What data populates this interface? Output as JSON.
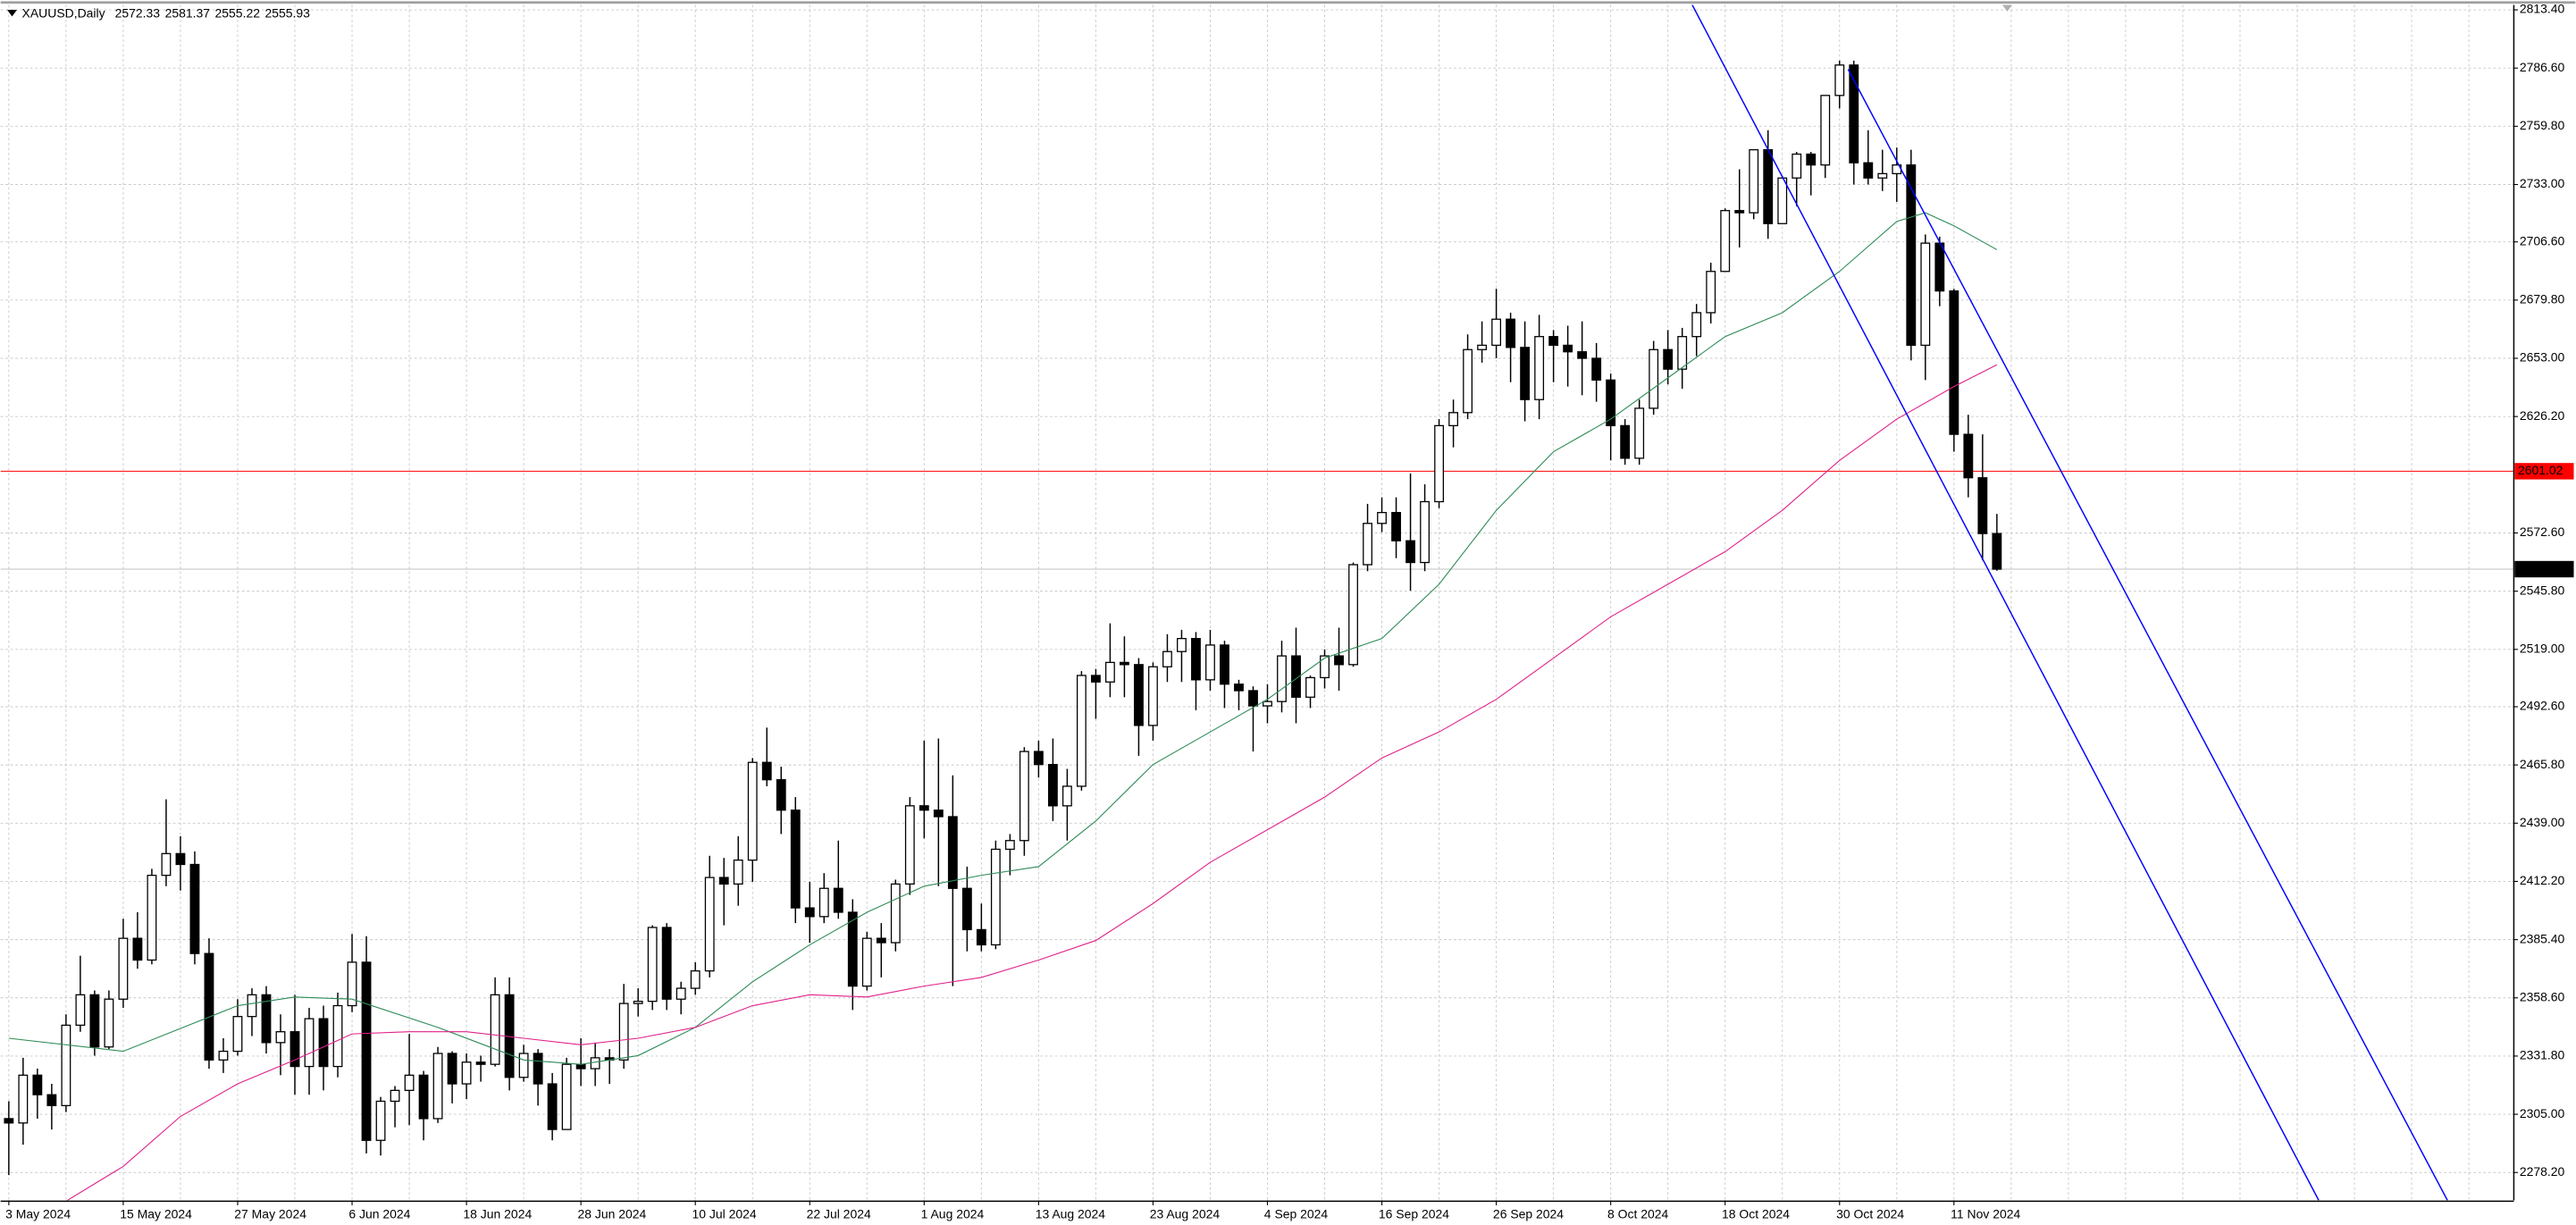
{
  "chart_data": {
    "type": "candlestick",
    "title": "XAUUSD,Daily",
    "bull_color": "#ffffff",
    "bear_color": "#000000",
    "grid": true,
    "categories": [
      "3 May 2024",
      null,
      null,
      null,
      null,
      null,
      null,
      null,
      "15 May 2024",
      null,
      null,
      null,
      null,
      null,
      null,
      null,
      "27 May 2024",
      null,
      null,
      null,
      null,
      null,
      null,
      null,
      "6 Jun 2024",
      null,
      null,
      null,
      null,
      null,
      null,
      null,
      "18 Jun 2024",
      null,
      null,
      null,
      null,
      null,
      null,
      null,
      "28 Jun 2024",
      null,
      null,
      null,
      null,
      null,
      null,
      null,
      "10 Jul 2024",
      null,
      null,
      null,
      null,
      null,
      null,
      null,
      "22 Jul 2024",
      null,
      null,
      null,
      null,
      null,
      null,
      null,
      "1 Aug 2024",
      null,
      null,
      null,
      null,
      null,
      null,
      null,
      "13 Aug 2024",
      null,
      null,
      null,
      null,
      null,
      null,
      null,
      "23 Aug 2024",
      null,
      null,
      null,
      null,
      null,
      null,
      null,
      "4 Sep 2024",
      null,
      null,
      null,
      null,
      null,
      null,
      null,
      "16 Sep 2024",
      null,
      null,
      null,
      null,
      null,
      null,
      null,
      "26 Sep 2024",
      null,
      null,
      null,
      null,
      null,
      null,
      null,
      "8 Oct 2024",
      null,
      null,
      null,
      null,
      null,
      null,
      null,
      "18 Oct 2024",
      null,
      null,
      null,
      null,
      null,
      null,
      null,
      "30 Oct 2024",
      null,
      null,
      null,
      null,
      null,
      null,
      null,
      "11 Nov 2024",
      null,
      null,
      null
    ],
    "ohlc": [
      [
        2303,
        2311,
        2277,
        2301
      ],
      [
        2301,
        2331,
        2291,
        2323
      ],
      [
        2323,
        2326,
        2303,
        2314
      ],
      [
        2314,
        2319,
        2298,
        2309
      ],
      [
        2309,
        2351,
        2306,
        2346
      ],
      [
        2346,
        2378,
        2343,
        2360
      ],
      [
        2360,
        2362,
        2332,
        2336
      ],
      [
        2336,
        2362,
        2335,
        2358
      ],
      [
        2358,
        2395,
        2354,
        2386
      ],
      [
        2386,
        2398,
        2372,
        2376
      ],
      [
        2376,
        2418,
        2374,
        2415
      ],
      [
        2415,
        2450,
        2410,
        2425
      ],
      [
        2425,
        2433,
        2408,
        2420
      ],
      [
        2420,
        2426,
        2374,
        2379
      ],
      [
        2379,
        2386,
        2326,
        2330
      ],
      [
        2330,
        2340,
        2324,
        2334
      ],
      [
        2334,
        2358,
        2332,
        2350
      ],
      [
        2350,
        2363,
        2341,
        2360
      ],
      [
        2360,
        2364,
        2333,
        2338
      ],
      [
        2338,
        2351,
        2323,
        2343
      ],
      [
        2343,
        2360,
        2314,
        2327
      ],
      [
        2327,
        2354,
        2314,
        2349
      ],
      [
        2349,
        2355,
        2316,
        2327
      ],
      [
        2327,
        2361,
        2322,
        2355
      ],
      [
        2355,
        2388,
        2352,
        2375
      ],
      [
        2375,
        2387,
        2287,
        2293
      ],
      [
        2293,
        2313,
        2286,
        2311
      ],
      [
        2311,
        2318,
        2299,
        2316
      ],
      [
        2316,
        2342,
        2300,
        2323
      ],
      [
        2323,
        2325,
        2293,
        2303
      ],
      [
        2303,
        2336,
        2301,
        2333
      ],
      [
        2333,
        2334,
        2310,
        2319
      ],
      [
        2319,
        2333,
        2312,
        2329
      ],
      [
        2329,
        2332,
        2320,
        2328
      ],
      [
        2328,
        2368,
        2327,
        2360
      ],
      [
        2360,
        2368,
        2316,
        2322
      ],
      [
        2322,
        2337,
        2320,
        2333
      ],
      [
        2333,
        2335,
        2309,
        2319
      ],
      [
        2319,
        2324,
        2293,
        2298
      ],
      [
        2298,
        2331,
        2298,
        2328
      ],
      [
        2328,
        2340,
        2318,
        2326
      ],
      [
        2326,
        2338,
        2318,
        2331
      ],
      [
        2331,
        2335,
        2319,
        2330
      ],
      [
        2330,
        2365,
        2326,
        2356
      ],
      [
        2356,
        2363,
        2350,
        2357
      ],
      [
        2357,
        2392,
        2353,
        2391
      ],
      [
        2391,
        2393,
        2353,
        2358
      ],
      [
        2358,
        2366,
        2351,
        2363
      ],
      [
        2363,
        2375,
        2360,
        2371
      ],
      [
        2371,
        2424,
        2368,
        2414
      ],
      [
        2414,
        2423,
        2392,
        2411
      ],
      [
        2411,
        2433,
        2401,
        2422
      ],
      [
        2422,
        2469,
        2412,
        2467
      ],
      [
        2467,
        2483,
        2456,
        2459
      ],
      [
        2459,
        2465,
        2434,
        2445
      ],
      [
        2445,
        2451,
        2393,
        2400
      ],
      [
        2400,
        2412,
        2384,
        2396
      ],
      [
        2396,
        2416,
        2393,
        2409
      ],
      [
        2409,
        2431,
        2395,
        2398
      ],
      [
        2398,
        2404,
        2353,
        2364
      ],
      [
        2364,
        2389,
        2362,
        2386
      ],
      [
        2386,
        2393,
        2368,
        2384
      ],
      [
        2384,
        2413,
        2380,
        2411
      ],
      [
        2411,
        2451,
        2406,
        2447
      ],
      [
        2447,
        2477,
        2432,
        2445
      ],
      [
        2445,
        2478,
        2410,
        2442
      ],
      [
        2442,
        2461,
        2364,
        2409
      ],
      [
        2409,
        2419,
        2380,
        2390
      ],
      [
        2390,
        2402,
        2380,
        2383
      ],
      [
        2383,
        2431,
        2381,
        2427
      ],
      [
        2427,
        2434,
        2415,
        2431
      ],
      [
        2431,
        2474,
        2424,
        2472
      ],
      [
        2472,
        2477,
        2460,
        2466
      ],
      [
        2466,
        2478,
        2440,
        2447
      ],
      [
        2447,
        2464,
        2431,
        2456
      ],
      [
        2456,
        2509,
        2454,
        2507
      ],
      [
        2507,
        2510,
        2487,
        2504
      ],
      [
        2504,
        2531,
        2497,
        2513
      ],
      [
        2513,
        2525,
        2497,
        2512
      ],
      [
        2512,
        2515,
        2470,
        2484
      ],
      [
        2484,
        2513,
        2477,
        2511
      ],
      [
        2511,
        2526,
        2504,
        2518
      ],
      [
        2518,
        2528,
        2504,
        2524
      ],
      [
        2524,
        2527,
        2491,
        2505
      ],
      [
        2505,
        2528,
        2500,
        2521
      ],
      [
        2521,
        2523,
        2492,
        2503
      ],
      [
        2503,
        2505,
        2491,
        2500
      ],
      [
        2500,
        2502,
        2472,
        2493
      ],
      [
        2493,
        2503,
        2485,
        2495
      ],
      [
        2495,
        2523,
        2490,
        2516
      ],
      [
        2516,
        2529,
        2485,
        2497
      ],
      [
        2497,
        2507,
        2492,
        2506
      ],
      [
        2506,
        2519,
        2501,
        2516
      ],
      [
        2516,
        2529,
        2500,
        2512
      ],
      [
        2512,
        2559,
        2511,
        2558
      ],
      [
        2558,
        2586,
        2555,
        2577
      ],
      [
        2577,
        2589,
        2573,
        2582
      ],
      [
        2582,
        2589,
        2561,
        2569
      ],
      [
        2569,
        2600,
        2546,
        2559
      ],
      [
        2559,
        2595,
        2555,
        2587
      ],
      [
        2587,
        2625,
        2584,
        2622
      ],
      [
        2622,
        2634,
        2612,
        2628
      ],
      [
        2628,
        2664,
        2625,
        2657
      ],
      [
        2657,
        2670,
        2651,
        2659
      ],
      [
        2659,
        2685,
        2653,
        2671
      ],
      [
        2671,
        2674,
        2642,
        2658
      ],
      [
        2658,
        2670,
        2624,
        2634
      ],
      [
        2634,
        2673,
        2625,
        2663
      ],
      [
        2663,
        2666,
        2642,
        2659
      ],
      [
        2659,
        2668,
        2640,
        2656
      ],
      [
        2656,
        2670,
        2636,
        2653
      ],
      [
        2653,
        2660,
        2633,
        2643
      ],
      [
        2643,
        2646,
        2606,
        2622
      ],
      [
        2622,
        2625,
        2604,
        2607
      ],
      [
        2607,
        2634,
        2604,
        2630
      ],
      [
        2630,
        2661,
        2627,
        2657
      ],
      [
        2657,
        2666,
        2641,
        2648
      ],
      [
        2648,
        2667,
        2639,
        2663
      ],
      [
        2663,
        2678,
        2654,
        2674
      ],
      [
        2674,
        2697,
        2669,
        2693
      ],
      [
        2693,
        2722,
        2693,
        2721
      ],
      [
        2721,
        2740,
        2704,
        2720
      ],
      [
        2720,
        2749,
        2717,
        2749
      ],
      [
        2749,
        2758,
        2708,
        2715
      ],
      [
        2715,
        2737,
        2715,
        2736
      ],
      [
        2736,
        2748,
        2723,
        2747
      ],
      [
        2747,
        2748,
        2728,
        2742
      ],
      [
        2742,
        2774,
        2736,
        2774
      ],
      [
        2774,
        2790,
        2768,
        2788
      ],
      [
        2788,
        2790,
        2733,
        2743
      ],
      [
        2743,
        2758,
        2733,
        2736
      ],
      [
        2736,
        2749,
        2730,
        2738
      ],
      [
        2738,
        2750,
        2725,
        2742
      ],
      [
        2742,
        2749,
        2652,
        2659
      ],
      [
        2659,
        2710,
        2643,
        2706
      ],
      [
        2706,
        2709,
        2677,
        2684
      ],
      [
        2684,
        2685,
        2610,
        2618
      ],
      [
        2618,
        2627,
        2589,
        2598
      ],
      [
        2598,
        2618,
        2560,
        2572.33
      ],
      [
        2572.33,
        2581.37,
        2555.22,
        2555.93
      ]
    ],
    "indicators": [
      {
        "color": "#2e8b57",
        "x": [
          0,
          8,
          16,
          20,
          24,
          30,
          36,
          40,
          44,
          48,
          52,
          56,
          60,
          64,
          68,
          72,
          76,
          80,
          84,
          88,
          92,
          96,
          100,
          104,
          108,
          112,
          116,
          120,
          124,
          128,
          132,
          134,
          136,
          139
        ],
        "values": [
          2340,
          2334,
          2355,
          2359,
          2358,
          2345,
          2330,
          2328,
          2332,
          2345,
          2366,
          2383,
          2398,
          2410,
          2415,
          2419,
          2440,
          2466,
          2481,
          2496,
          2515,
          2524,
          2549,
          2583,
          2610,
          2625,
          2644,
          2663,
          2674,
          2693,
          2716,
          2720,
          2714,
          2703
        ]
      },
      {
        "color": "#e0218a",
        "x": [
          4,
          8,
          12,
          16,
          20,
          24,
          28,
          32,
          36,
          40,
          44,
          48,
          52,
          56,
          60,
          64,
          68,
          72,
          76,
          80,
          84,
          88,
          92,
          96,
          100,
          104,
          108,
          112,
          116,
          120,
          124,
          128,
          132,
          136,
          139
        ],
        "values": [
          2265,
          2281,
          2304,
          2319,
          2330,
          2342,
          2343,
          2343,
          2340,
          2337,
          2340,
          2345,
          2355,
          2360,
          2359,
          2364,
          2368,
          2376,
          2385,
          2402,
          2421,
          2436,
          2451,
          2469,
          2481,
          2496,
          2515,
          2534,
          2549,
          2564,
          2583,
          2606,
          2625,
          2640,
          2650
        ]
      }
    ],
    "trendlines": [
      {
        "color": "#0000ff",
        "x": [
          117.7,
          161.5
        ],
        "values": [
          2815.7,
          2265.4
        ]
      },
      {
        "color": "#0000ff",
        "x": [
          128.6,
          170.5
        ],
        "values": [
          2786,
          2265.4
        ]
      }
    ],
    "hlines": [
      {
        "value": 2601.02,
        "color": "#ff0000"
      }
    ],
    "bid_color": "#c0c0c0",
    "ylim": [
      2265.37,
      2815.67
    ],
    "yticks": [
      {
        "value": 2813.4,
        "label": "2813.40"
      },
      {
        "value": 2786.6,
        "label": "2786.60"
      },
      {
        "value": 2759.8,
        "label": "2759.80"
      },
      {
        "value": 2733,
        "label": "2733.00"
      },
      {
        "value": 2706.6,
        "label": "2706.60"
      },
      {
        "value": 2679.8,
        "label": "2679.80"
      },
      {
        "value": 2653,
        "label": "2653.00"
      },
      {
        "value": 2626.2,
        "label": "2626.20"
      },
      {
        "value": 2572.6,
        "label": "2572.60"
      },
      {
        "value": 2545.8,
        "label": "2545.80"
      },
      {
        "value": 2519,
        "label": "2519.00"
      },
      {
        "value": 2492.6,
        "label": "2492.60"
      },
      {
        "value": 2465.8,
        "label": "2465.80"
      },
      {
        "value": 2439,
        "label": "2439.00"
      },
      {
        "value": 2412.2,
        "label": "2412.20"
      },
      {
        "value": 2385.4,
        "label": "2385.40"
      },
      {
        "value": 2358.6,
        "label": "2358.60"
      },
      {
        "value": 2331.8,
        "label": "2331.80"
      },
      {
        "value": 2305,
        "label": "2305.00"
      },
      {
        "value": 2278.2,
        "label": "2278.20"
      }
    ]
  }
}
